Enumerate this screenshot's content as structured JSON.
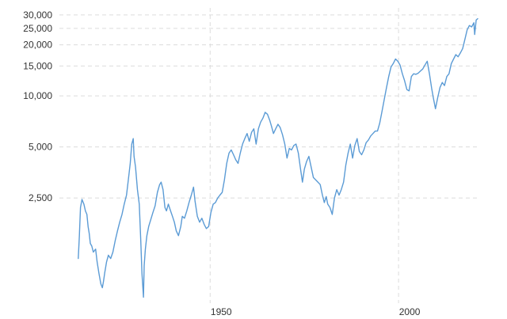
{
  "chart_data": {
    "type": "line",
    "title": "",
    "xlabel": "",
    "ylabel": "",
    "y_scale": "log",
    "grid": true,
    "legend": "none",
    "line_color": "#5b9bd5",
    "grid_color": "#dcdcdc",
    "xlim": [
      1910,
      2021
    ],
    "ylim": [
      600,
      33000
    ],
    "x_ticks": [
      {
        "value": 1950,
        "label": "1950"
      },
      {
        "value": 2000,
        "label": "2000"
      }
    ],
    "y_ticks": [
      {
        "value": 2500,
        "label": "2,500"
      },
      {
        "value": 5000,
        "label": "5,000"
      },
      {
        "value": 10000,
        "label": "10,000"
      },
      {
        "value": 15000,
        "label": "15,000"
      },
      {
        "value": 20000,
        "label": "20,000"
      },
      {
        "value": 25000,
        "label": "25,000"
      },
      {
        "value": 30000,
        "label": "30,000"
      }
    ],
    "series": [
      {
        "x": [
          1915.0,
          1915.3,
          1915.6,
          1916.0,
          1916.5,
          1916.9,
          1917.3,
          1917.6,
          1917.9,
          1918.2,
          1918.6,
          1919.0,
          1919.6,
          1920.0,
          1920.5,
          1921.0,
          1921.4,
          1921.7,
          1922.0,
          1922.5,
          1923.0,
          1923.6,
          1924.2,
          1924.8,
          1925.4,
          1926.0,
          1926.6,
          1927.2,
          1927.8,
          1928.3,
          1928.8,
          1929.2,
          1929.6,
          1929.8,
          1930.2,
          1930.7,
          1931.2,
          1931.6,
          1931.9,
          1932.3,
          1932.5,
          1932.8,
          1933.2,
          1933.7,
          1934.2,
          1934.8,
          1935.4,
          1936.0,
          1936.6,
          1937.0,
          1937.5,
          1938.0,
          1938.4,
          1938.9,
          1939.5,
          1940.0,
          1940.5,
          1941.0,
          1941.6,
          1942.2,
          1942.6,
          1943.2,
          1943.8,
          1944.4,
          1945.0,
          1945.6,
          1946.0,
          1946.6,
          1947.2,
          1947.8,
          1948.4,
          1949.0,
          1949.6,
          1950.2,
          1950.8,
          1951.4,
          1952.0,
          1952.6,
          1953.2,
          1953.8,
          1954.4,
          1955.0,
          1955.6,
          1956.2,
          1956.8,
          1957.4,
          1958.0,
          1958.6,
          1959.2,
          1959.8,
          1960.4,
          1961.0,
          1961.6,
          1962.2,
          1962.8,
          1963.4,
          1964.0,
          1964.6,
          1965.2,
          1965.8,
          1966.3,
          1966.8,
          1967.4,
          1968.0,
          1968.6,
          1969.2,
          1969.8,
          1970.4,
          1971.0,
          1971.6,
          1972.2,
          1972.8,
          1973.4,
          1974.0,
          1974.5,
          1975.0,
          1975.6,
          1976.2,
          1976.8,
          1977.4,
          1978.0,
          1978.6,
          1979.2,
          1979.8,
          1980.3,
          1980.8,
          1981.2,
          1981.8,
          1982.4,
          1983.0,
          1983.6,
          1984.2,
          1984.8,
          1985.4,
          1986.0,
          1986.6,
          1987.2,
          1987.8,
          1988.4,
          1989.0,
          1989.6,
          1990.2,
          1990.8,
          1991.4,
          1992.0,
          1992.6,
          1993.2,
          1993.8,
          1994.4,
          1995.0,
          1995.6,
          1996.2,
          1996.8,
          1997.4,
          1998.0,
          1998.6,
          1999.2,
          1999.8,
          2000.4,
          2001.0,
          2001.6,
          2002.2,
          2002.8,
          2003.4,
          2004.0,
          2004.6,
          2005.2,
          2005.8,
          2006.4,
          2007.0,
          2007.6,
          2008.2,
          2008.8,
          2009.2,
          2009.8,
          2010.4,
          2011.0,
          2011.6,
          2012.2,
          2012.8,
          2013.4,
          2014.0,
          2014.6,
          2015.2,
          2015.8,
          2016.4,
          2017.0,
          2017.6,
          2018.2,
          2018.8,
          2019.4,
          2020.0,
          2020.2,
          2020.6,
          2021.0
        ],
        "values": [
          1100,
          1500,
          2200,
          2450,
          2300,
          2100,
          2000,
          1700,
          1550,
          1350,
          1300,
          1200,
          1250,
          1050,
          900,
          780,
          740,
          810,
          900,
          1050,
          1150,
          1100,
          1200,
          1400,
          1600,
          1800,
          2000,
          2300,
          2600,
          3200,
          4000,
          5200,
          5600,
          4400,
          3800,
          2800,
          2300,
          1400,
          900,
          650,
          1000,
          1250,
          1500,
          1700,
          1850,
          2050,
          2250,
          2700,
          3000,
          3100,
          2800,
          2200,
          2100,
          2300,
          2100,
          1950,
          1800,
          1600,
          1500,
          1700,
          1950,
          1900,
          2100,
          2350,
          2600,
          2900,
          2400,
          1950,
          1800,
          1900,
          1750,
          1650,
          1700,
          2050,
          2300,
          2350,
          2500,
          2600,
          2700,
          3200,
          4000,
          4600,
          4800,
          4500,
          4200,
          4000,
          4600,
          5200,
          5600,
          6000,
          5400,
          6100,
          6400,
          5200,
          6400,
          7000,
          7400,
          8000,
          7800,
          7200,
          6600,
          6000,
          6400,
          6800,
          6500,
          5900,
          5200,
          4300,
          4900,
          4800,
          5100,
          5200,
          4600,
          3700,
          3100,
          3700,
          4100,
          4400,
          3800,
          3300,
          3200,
          3100,
          3000,
          2600,
          2350,
          2550,
          2300,
          2200,
          2000,
          2500,
          2800,
          2600,
          2800,
          3100,
          3900,
          4600,
          5200,
          4300,
          5100,
          5600,
          4700,
          4500,
          4800,
          5300,
          5500,
          5800,
          6000,
          6200,
          6200,
          6900,
          8100,
          9500,
          11200,
          13000,
          14800,
          15500,
          16500,
          16000,
          15200,
          13500,
          12300,
          10900,
          10700,
          13000,
          13500,
          13400,
          13600,
          14000,
          14400,
          15200,
          16000,
          13500,
          11000,
          9800,
          8400,
          9800,
          11200,
          12000,
          11500,
          13000,
          13500,
          15500,
          16500,
          17500,
          17000,
          17900,
          19000,
          21500,
          24500,
          26000,
          25500,
          27000,
          23000,
          28000,
          28500
        ]
      }
    ]
  }
}
